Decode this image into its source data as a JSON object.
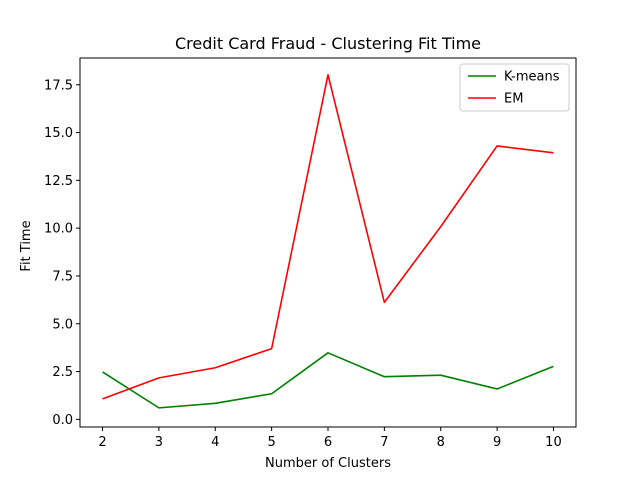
{
  "chart_data": {
    "type": "line",
    "title": "Credit Card Fraud - Clustering Fit Time",
    "xlabel": "Number of Clusters",
    "ylabel": "Fit Time",
    "x": [
      2,
      3,
      4,
      5,
      6,
      7,
      8,
      9,
      10
    ],
    "xticks": [
      "2",
      "3",
      "4",
      "5",
      "6",
      "7",
      "8",
      "9",
      "10"
    ],
    "xlim": [
      1.6,
      10.4
    ],
    "ylim": [
      -0.4,
      18.9
    ],
    "yticks": [
      0.0,
      2.5,
      5.0,
      7.5,
      10.0,
      12.5,
      15.0,
      17.5
    ],
    "ytick_labels": [
      "0.0",
      "2.5",
      "5.0",
      "7.5",
      "10.0",
      "12.5",
      "15.0",
      "17.5"
    ],
    "grid": false,
    "legend_position": "top-right",
    "series": [
      {
        "name": "K-means",
        "color": "#008000",
        "values": [
          2.48,
          0.6,
          0.84,
          1.34,
          3.48,
          2.23,
          2.31,
          1.59,
          2.77
        ]
      },
      {
        "name": "EM",
        "color": "#ff0000",
        "values": [
          1.07,
          2.17,
          2.7,
          3.7,
          18.02,
          6.12,
          10.08,
          14.3,
          13.94
        ]
      }
    ]
  }
}
